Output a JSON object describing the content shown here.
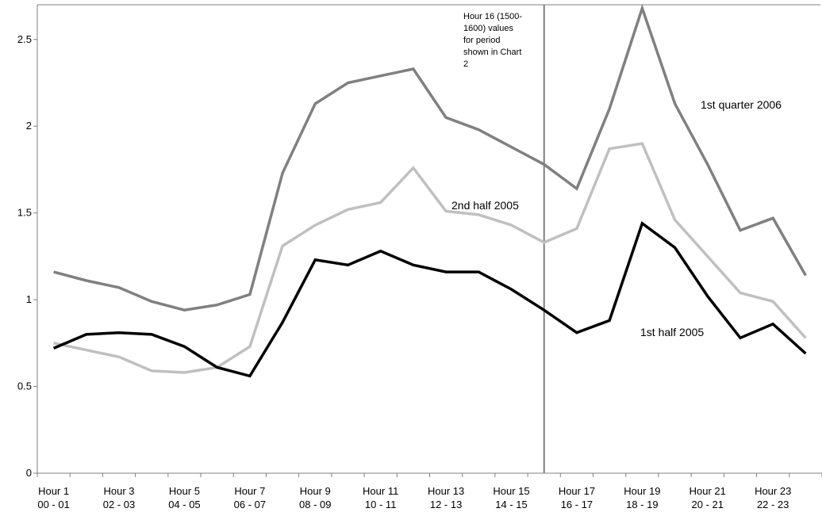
{
  "chart_data": {
    "type": "line",
    "categories": [
      [
        "Hour 1",
        "00 - 01"
      ],
      [
        "",
        ""
      ],
      [
        "Hour 3",
        "02 - 03"
      ],
      [
        "",
        ""
      ],
      [
        "Hour 5",
        "04 - 05"
      ],
      [
        "",
        ""
      ],
      [
        "Hour 7",
        "06 - 07"
      ],
      [
        "",
        ""
      ],
      [
        "Hour 9",
        "08 - 09"
      ],
      [
        "",
        ""
      ],
      [
        "Hour 11",
        "10 - 11"
      ],
      [
        "",
        ""
      ],
      [
        "Hour 13",
        "12 - 13"
      ],
      [
        "",
        ""
      ],
      [
        "Hour 15",
        "14 - 15"
      ],
      [
        "",
        ""
      ],
      [
        "Hour 17",
        "16 - 17"
      ],
      [
        "",
        ""
      ],
      [
        "Hour 19",
        "18 - 19"
      ],
      [
        "",
        ""
      ],
      [
        "Hour 21",
        "20 - 21"
      ],
      [
        "",
        ""
      ],
      [
        "Hour 23",
        "22 - 23"
      ],
      [
        "",
        ""
      ]
    ],
    "ylim": [
      0,
      2.7
    ],
    "yticks": [
      0,
      0.5,
      1,
      1.5,
      2,
      2.5
    ],
    "ytick_labels": [
      "0",
      "0.5",
      "1",
      "1.5",
      "2",
      "2.5"
    ],
    "grid": false,
    "series": [
      {
        "name": "1st quarter 2006",
        "color": "#808080",
        "values": [
          1.16,
          1.11,
          1.07,
          0.99,
          0.94,
          0.97,
          1.03,
          1.73,
          2.13,
          2.25,
          2.29,
          2.33,
          2.05,
          1.98,
          1.88,
          1.78,
          1.64,
          2.1,
          2.68,
          2.13,
          1.78,
          1.4,
          1.47,
          1.14
        ]
      },
      {
        "name": "2nd half 2005",
        "color": "#c0c0c0",
        "values": [
          0.75,
          0.71,
          0.67,
          0.59,
          0.58,
          0.61,
          0.73,
          1.31,
          1.43,
          1.52,
          1.56,
          1.76,
          1.51,
          1.49,
          1.43,
          1.33,
          1.41,
          1.87,
          1.9,
          1.46,
          1.25,
          1.04,
          0.99,
          0.78
        ]
      },
      {
        "name": "1st half 2005",
        "color": "#000000",
        "values": [
          0.72,
          0.8,
          0.81,
          0.8,
          0.73,
          0.61,
          0.56,
          0.87,
          1.23,
          1.2,
          1.28,
          1.2,
          1.16,
          1.16,
          1.06,
          0.94,
          0.81,
          0.88,
          1.44,
          1.3,
          1.02,
          0.78,
          0.86,
          0.69
        ]
      }
    ],
    "annotation": {
      "lines": [
        "Hour 16 (1500-",
        "1600) values",
        "for period",
        "shown in Chart",
        "2"
      ],
      "category_index": 15
    }
  }
}
